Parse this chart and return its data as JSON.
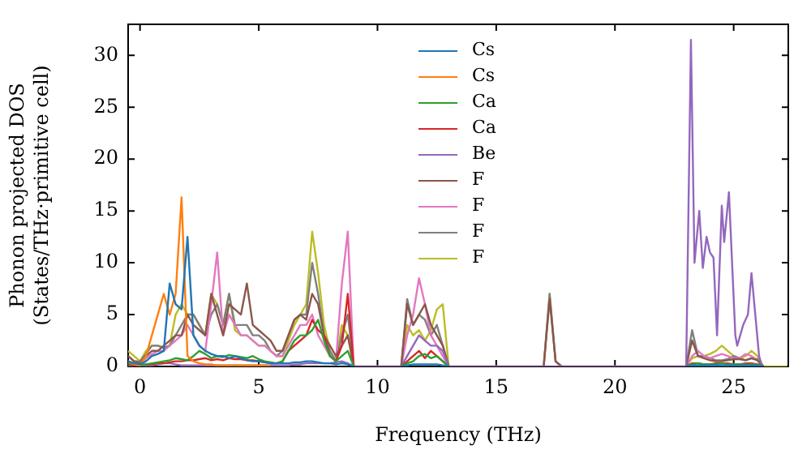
{
  "chart_data": {
    "type": "line",
    "xlabel": "Frequency (THz)",
    "ylabel": "Phonon projected DOS\n(States/THz·primitive cell)",
    "xlim": [
      -0.5,
      27.3
    ],
    "ylim": [
      0,
      33
    ],
    "xticks": [
      0,
      5,
      10,
      15,
      20,
      25
    ],
    "yticks": [
      0,
      5,
      10,
      15,
      20,
      25,
      30
    ],
    "grid": false,
    "legend": "top",
    "marker": "none",
    "line_style": "solid",
    "x": [
      -0.5,
      -0.25,
      0,
      0.25,
      0.5,
      0.75,
      1,
      1.25,
      1.5,
      1.75,
      2,
      2.25,
      2.5,
      2.75,
      3,
      3.25,
      3.5,
      3.75,
      4,
      4.25,
      4.5,
      4.75,
      5,
      5.25,
      5.5,
      5.75,
      6,
      6.25,
      6.5,
      6.75,
      7,
      7.25,
      7.5,
      7.75,
      8,
      8.25,
      8.5,
      8.75,
      9,
      9.25,
      10.75,
      11,
      11.25,
      11.5,
      11.75,
      12,
      12.25,
      12.5,
      12.75,
      13,
      13.25,
      16.75,
      17,
      17.25,
      17.5,
      17.75,
      22.75,
      23,
      23.25,
      23.5,
      23.75,
      24,
      24.25,
      24.5,
      24.75,
      25,
      25.25,
      25.5,
      25.75,
      26,
      26.25,
      26.5,
      27.25
    ],
    "series": [
      {
        "name": "Cs",
        "color": "#1f77b4",
        "values": [
          0.5,
          0.3,
          0.2,
          0.5,
          1,
          1.2,
          1.5,
          8,
          6,
          5.5,
          12.5,
          3,
          2,
          1.5,
          1.2,
          1,
          1,
          0.8,
          1,
          0.8,
          0.6,
          0.5,
          0.5,
          0.4,
          0.3,
          0.3,
          0.3,
          0.3,
          0.4,
          0.4,
          0.5,
          0.5,
          0.4,
          0.3,
          0.3,
          0.2,
          0.3,
          0.2,
          0,
          null,
          null,
          0,
          0.1,
          0.2,
          0.2,
          0.2,
          0.2,
          0.2,
          0.1,
          0,
          null,
          null,
          null,
          null,
          null,
          null,
          null,
          0,
          0.1,
          0.1,
          0.1,
          0.1,
          0.1,
          0.1,
          0.1,
          0.1,
          0.1,
          0.1,
          0.1,
          0.1,
          0,
          null,
          null
        ]
      },
      {
        "name": "Cs",
        "color": "#ff7f0e",
        "values": [
          0.5,
          0.2,
          0.1,
          1,
          3,
          5,
          7,
          5,
          7,
          16.3,
          1,
          0.5,
          0.3,
          0.2,
          0.2,
          0.1,
          0.1,
          0.1,
          0.1,
          0.1,
          0.1,
          0.1,
          0.1,
          0.1,
          0,
          null,
          null,
          null,
          null,
          null,
          null,
          null,
          null,
          null,
          null,
          null,
          null,
          null,
          null,
          null,
          null,
          null,
          null,
          null,
          null,
          null,
          null,
          null,
          null,
          null,
          null,
          null,
          null,
          null,
          null,
          null,
          null,
          null,
          null,
          null,
          null,
          null,
          null,
          null,
          null,
          null,
          null,
          null,
          null,
          null,
          null,
          null,
          null
        ]
      },
      {
        "name": "Ca",
        "color": "#2ca02c",
        "values": [
          0.3,
          0.2,
          0.1,
          0.2,
          0.3,
          0.4,
          0.5,
          0.6,
          0.8,
          0.7,
          0.6,
          1,
          1.5,
          1.2,
          0.8,
          1,
          0.9,
          1.1,
          1,
          0.9,
          0.8,
          1,
          0.7,
          0.5,
          0.4,
          0.3,
          0.5,
          1.5,
          2.5,
          3,
          3,
          3.5,
          4.5,
          2.5,
          1,
          0.5,
          1,
          1.5,
          0,
          null,
          null,
          0,
          0.3,
          0.5,
          1,
          1.2,
          0.8,
          1,
          0.5,
          0,
          null,
          null,
          null,
          null,
          null,
          null,
          null,
          0,
          0.2,
          0.3,
          0.2,
          0.2,
          0.2,
          0.3,
          0.2,
          0.2,
          0.2,
          0.2,
          0.2,
          0.2,
          0,
          null,
          null
        ]
      },
      {
        "name": "Ca",
        "color": "#d62728",
        "values": [
          0.2,
          0.1,
          0.1,
          0.2,
          0.2,
          0.3,
          0.3,
          0.4,
          0.5,
          0.5,
          0.6,
          0.6,
          0.7,
          0.8,
          0.6,
          0.7,
          0.6,
          0.8,
          0.7,
          0.7,
          0.6,
          0.6,
          0.5,
          0.4,
          0.3,
          0.3,
          0.5,
          1.5,
          2,
          2.5,
          3,
          4.5,
          3.5,
          3,
          1,
          0.5,
          2,
          7,
          0,
          null,
          null,
          0,
          0.5,
          1,
          1.5,
          0.8,
          1.5,
          1,
          0.5,
          0,
          null,
          null,
          null,
          null,
          null,
          null,
          null,
          0,
          0.3,
          0.3,
          0.2,
          0.2,
          0.3,
          0.3,
          0.3,
          0.2,
          0.2,
          0.3,
          0.3,
          0.2,
          0,
          null,
          null
        ]
      },
      {
        "name": "Be",
        "color": "#9467bd",
        "x": [
          -0.5,
          -0.25,
          0,
          0.25,
          0.5,
          0.75,
          1,
          1.25,
          1.5,
          1.75,
          2,
          2.25,
          2.5,
          2.75,
          3,
          3.25,
          3.5,
          3.75,
          4,
          4.25,
          4.5,
          4.75,
          5,
          5.25,
          5.5,
          5.75,
          6,
          6.25,
          6.5,
          6.75,
          7,
          7.25,
          7.5,
          7.75,
          8,
          8.25,
          8.5,
          8.75,
          9,
          11,
          11.25,
          11.5,
          11.75,
          12,
          12.25,
          12.5,
          12.75,
          13,
          23,
          23.2,
          23.35,
          23.55,
          23.7,
          23.86,
          24,
          24.15,
          24.3,
          24.5,
          24.6,
          24.8,
          25.07,
          25.15,
          25.4,
          25.6,
          25.75,
          26.07,
          26.2
        ],
        "values": [
          0,
          0,
          0,
          0.1,
          0.1,
          0.2,
          0.3,
          0.3,
          0.2,
          0.1,
          0.1,
          0.1,
          0.1,
          0.1,
          0.1,
          0.1,
          0.1,
          0.1,
          0.1,
          0.1,
          0.1,
          0.1,
          0.1,
          0.1,
          0.1,
          0.1,
          0.1,
          0.1,
          0.2,
          0.2,
          0.3,
          0.3,
          0.3,
          0.3,
          0.3,
          0.4,
          0.5,
          0.3,
          0,
          0,
          1,
          2,
          3,
          2.5,
          2,
          2,
          1.5,
          0,
          0,
          31.5,
          10,
          15,
          9.5,
          12.5,
          11,
          10.5,
          3,
          15.5,
          12,
          16.8,
          3,
          2,
          4,
          5,
          9,
          1,
          0
        ]
      },
      {
        "name": "F",
        "color": "#8c564b",
        "values": [
          1,
          0.5,
          0.3,
          1,
          1.5,
          1.5,
          2,
          2.5,
          3,
          3,
          5,
          4,
          3.5,
          3,
          7,
          5,
          3,
          6,
          5.5,
          5,
          8,
          4,
          3.5,
          3,
          2.5,
          1.5,
          1.5,
          3,
          4.5,
          5,
          4.5,
          7,
          6,
          3,
          2,
          1,
          2,
          3,
          0,
          null,
          null,
          0,
          6,
          4,
          5,
          6,
          4,
          3,
          2,
          0,
          null,
          null,
          0,
          6.5,
          0.5,
          0,
          null,
          0,
          2.5,
          1,
          0.8,
          0.6,
          0.5,
          0.5,
          0.6,
          0.7,
          0.7,
          0.6,
          0.8,
          0.6,
          0,
          null,
          null
        ]
      },
      {
        "name": "F",
        "color": "#e377c2",
        "values": [
          0.5,
          0.3,
          0.2,
          0.8,
          1.2,
          1.5,
          1.5,
          2,
          2.5,
          3,
          4,
          3,
          2,
          1.5,
          6,
          11,
          3,
          5,
          4,
          3,
          3,
          2.5,
          2,
          2,
          1.5,
          1,
          1,
          2,
          3,
          4,
          4,
          5,
          3,
          2,
          1,
          0.5,
          8,
          13,
          0,
          null,
          null,
          0,
          3,
          5,
          8.5,
          6,
          3,
          2,
          1,
          0,
          null,
          null,
          null,
          null,
          null,
          null,
          null,
          0,
          1,
          1.5,
          1,
          0.8,
          1,
          1.2,
          1,
          0.8,
          0.8,
          1.2,
          1,
          0.6,
          0,
          null,
          null
        ]
      },
      {
        "name": "F",
        "color": "#7f7f7f",
        "values": [
          1,
          0.5,
          0.5,
          1.2,
          2,
          2,
          1.8,
          2,
          3,
          4,
          5,
          5,
          4,
          3,
          5,
          6,
          4,
          7,
          4,
          4,
          4,
          3,
          3,
          2.5,
          1.5,
          1,
          1.5,
          3,
          4.5,
          5,
          5,
          10,
          7,
          3,
          1.5,
          0.5,
          3,
          5,
          0,
          null,
          null,
          0,
          6.5,
          4,
          5,
          4.5,
          3,
          4,
          2,
          0,
          null,
          null,
          0,
          7,
          0.5,
          0,
          null,
          0,
          3.5,
          1,
          1,
          0.8,
          0.6,
          0.6,
          0.7,
          1,
          0.8,
          0.6,
          0.8,
          0.7,
          0,
          null,
          null
        ]
      },
      {
        "name": "F",
        "color": "#bcbd22",
        "values": [
          1.5,
          1,
          0.5,
          1.5,
          2,
          2,
          1.8,
          2,
          5,
          6,
          5,
          5,
          4,
          3,
          7,
          6,
          4,
          7,
          3.5,
          3,
          3,
          2.5,
          2,
          2,
          1.5,
          1,
          1,
          2.5,
          4,
          5,
          6,
          13,
          9,
          4,
          1.5,
          0.5,
          4,
          3,
          0,
          0,
          0,
          0,
          4,
          3,
          3.5,
          2.5,
          3.5,
          5.5,
          6,
          0,
          0,
          0,
          0,
          7,
          0.5,
          0,
          0,
          0,
          0.8,
          1,
          1,
          1.2,
          1.5,
          2,
          1.5,
          1,
          0.8,
          1,
          1.5,
          1,
          0,
          0,
          0
        ]
      }
    ]
  }
}
